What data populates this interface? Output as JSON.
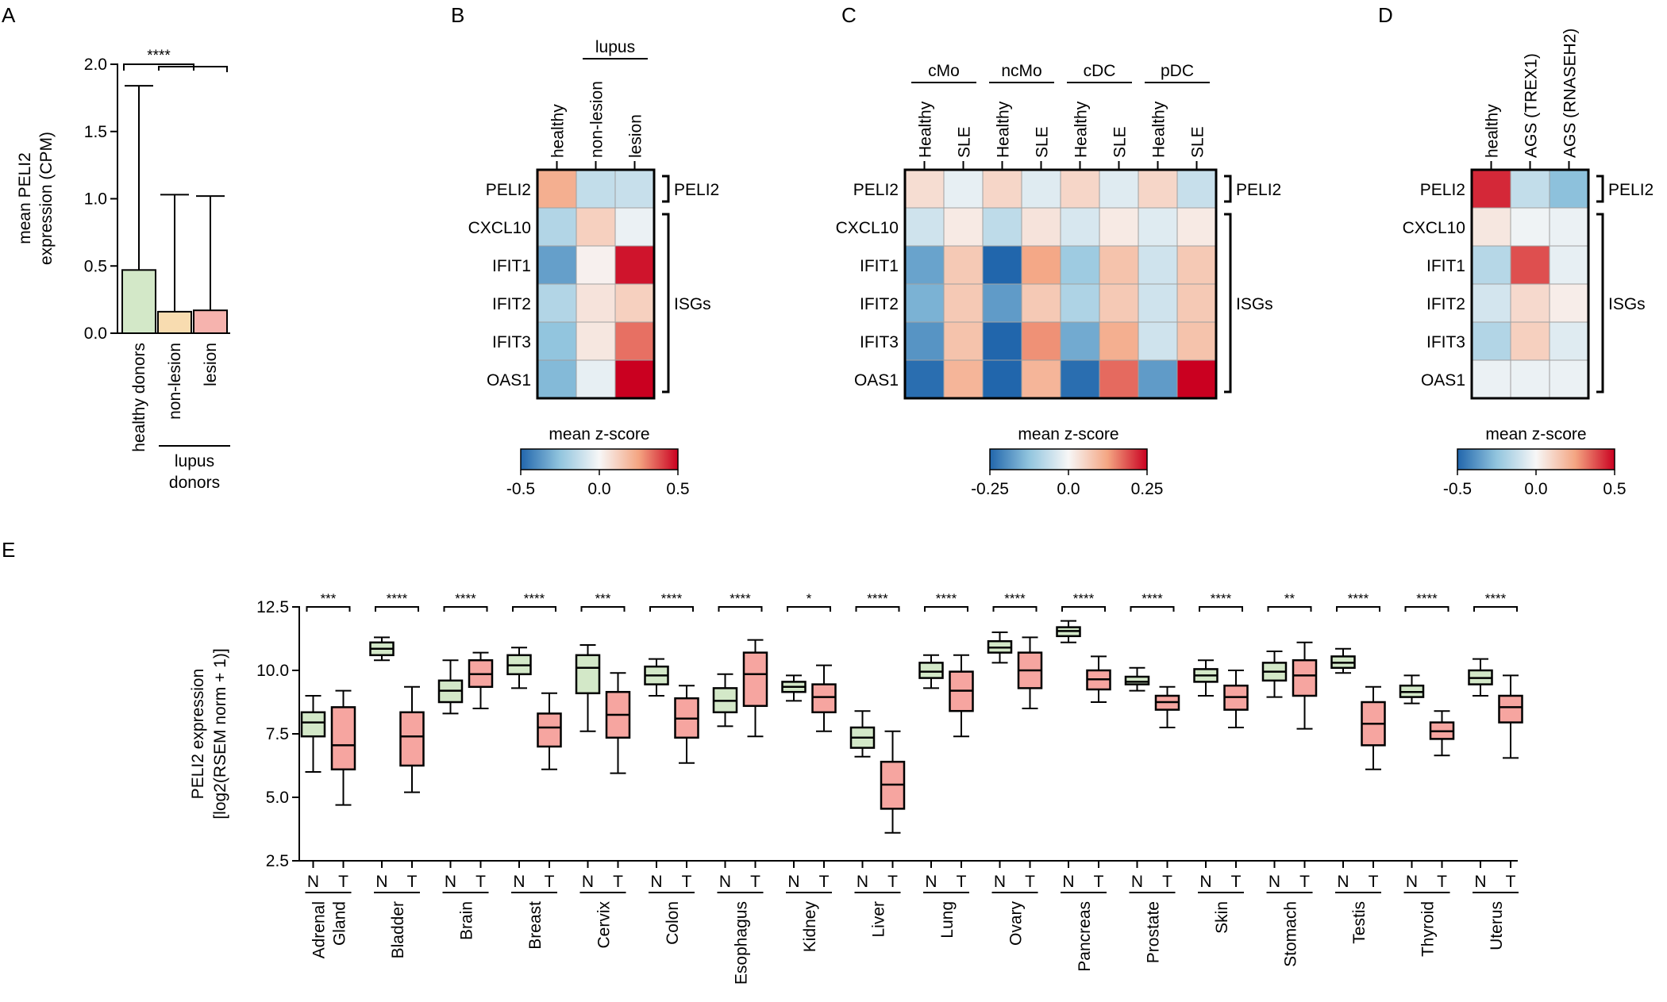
{
  "panel_labels": [
    "A",
    "B",
    "C",
    "D",
    "E"
  ],
  "chart_data": [
    {
      "id": "A",
      "type": "bar",
      "ylabel_lines": [
        "mean PELI2",
        "expression (CPM)"
      ],
      "ylim": [
        0,
        2.0
      ],
      "yticks": [
        "0.0",
        "0.5",
        "1.0",
        "1.5",
        "2.0"
      ],
      "categories": [
        "healthy donors",
        "non-lesion",
        "lesion"
      ],
      "values": [
        0.47,
        0.16,
        0.17
      ],
      "error_upper": [
        1.84,
        1.03,
        1.02
      ],
      "colors": [
        "#d3e8c8",
        "#f8dcb0",
        "#f6b3ae"
      ],
      "group_label_lines": [
        "lupus",
        "donors"
      ],
      "significance": "****"
    },
    {
      "id": "B",
      "type": "heatmap",
      "columns": [
        "healthy",
        "non-lesion",
        "lesion"
      ],
      "group_labels": [
        {
          "label": "lupus",
          "start": 1,
          "end": 2
        }
      ],
      "rows": [
        "PELI2",
        "CXCL10",
        "IFIT1",
        "IFIT2",
        "IFIT3",
        "OAS1"
      ],
      "values": [
        [
          0.22,
          -0.13,
          -0.12
        ],
        [
          -0.17,
          0.12,
          -0.03
        ],
        [
          -0.35,
          0.02,
          0.47
        ],
        [
          -0.17,
          0.06,
          0.12
        ],
        [
          -0.25,
          0.05,
          0.33
        ],
        [
          -0.28,
          -0.04,
          0.5
        ]
      ],
      "bracket_labels": [
        "PELI2",
        "ISGs"
      ],
      "colorbar": {
        "title": "mean z-score",
        "min": -0.5,
        "max": 0.5,
        "ticks": [
          "-0.5",
          "0.0",
          "0.5"
        ]
      }
    },
    {
      "id": "C",
      "type": "heatmap",
      "columns": [
        "Healthy",
        "SLE",
        "Healthy",
        "SLE",
        "Healthy",
        "SLE",
        "Healthy",
        "SLE"
      ],
      "group_labels": [
        {
          "label": "cMo",
          "start": 0,
          "end": 1
        },
        {
          "label": "ncMo",
          "start": 2,
          "end": 3
        },
        {
          "label": "cDC",
          "start": 4,
          "end": 5
        },
        {
          "label": "pDC",
          "start": 6,
          "end": 7
        }
      ],
      "rows": [
        "PELI2",
        "CXCL10",
        "IFIT1",
        "IFIT2",
        "IFIT3",
        "OAS1"
      ],
      "values": [
        [
          0.04,
          -0.02,
          0.05,
          -0.03,
          0.05,
          -0.03,
          0.05,
          -0.06
        ],
        [
          -0.05,
          0.02,
          -0.07,
          0.03,
          -0.04,
          0.02,
          -0.03,
          0.02
        ],
        [
          -0.17,
          0.07,
          -0.25,
          0.12,
          -0.11,
          0.08,
          -0.05,
          0.07
        ],
        [
          -0.15,
          0.07,
          -0.18,
          0.07,
          -0.09,
          0.07,
          -0.05,
          0.07
        ],
        [
          -0.19,
          0.08,
          -0.25,
          0.14,
          -0.16,
          0.11,
          -0.05,
          0.08
        ],
        [
          -0.24,
          0.1,
          -0.25,
          0.1,
          -0.24,
          0.17,
          -0.18,
          0.25
        ]
      ],
      "bracket_labels": [
        "PELI2",
        "ISGs"
      ],
      "colorbar": {
        "title": "mean z-score",
        "min": -0.25,
        "max": 0.25,
        "ticks": [
          "-0.25",
          "0.0",
          "0.25"
        ]
      }
    },
    {
      "id": "D",
      "type": "heatmap",
      "columns": [
        "healthy",
        "AGS (TREX1)",
        "AGS (RNASEH2)"
      ],
      "group_labels": [],
      "rows": [
        "PELI2",
        "CXCL10",
        "IFIT1",
        "IFIT2",
        "IFIT3",
        "OAS1"
      ],
      "values": [
        [
          0.44,
          -0.13,
          -0.26
        ],
        [
          0.05,
          -0.02,
          -0.03
        ],
        [
          -0.16,
          0.38,
          -0.04
        ],
        [
          -0.09,
          0.09,
          0.03
        ],
        [
          -0.17,
          0.12,
          -0.06
        ],
        [
          -0.03,
          -0.03,
          -0.03
        ]
      ],
      "bracket_labels": [
        "PELI2",
        "ISGs"
      ],
      "colorbar": {
        "title": "mean z-score",
        "min": -0.5,
        "max": 0.5,
        "ticks": [
          "-0.5",
          "0.0",
          "0.5"
        ]
      }
    },
    {
      "id": "E",
      "type": "box",
      "ylabel_lines": [
        "PELI2 expression",
        "[log2(RSEM norm + 1)]"
      ],
      "ylim": [
        2.5,
        12.5
      ],
      "yticks": [
        "2.5",
        "5.0",
        "7.5",
        "10.0",
        "12.5"
      ],
      "pair_labels": [
        "N",
        "T"
      ],
      "colors": {
        "N": "#d3e8c8",
        "T": "#f6a5a0"
      },
      "tissues": [
        {
          "name": "Adrenal Gland",
          "lines": [
            "Adrenal",
            "Gland"
          ],
          "sig": "***",
          "N": [
            6.0,
            7.4,
            7.95,
            8.35,
            9.0
          ],
          "T": [
            4.7,
            6.1,
            7.05,
            8.55,
            9.2
          ]
        },
        {
          "name": "Bladder",
          "lines": [
            "Bladder"
          ],
          "sig": "****",
          "N": [
            10.4,
            10.6,
            10.85,
            11.1,
            11.3
          ],
          "T": [
            5.2,
            6.25,
            7.4,
            8.35,
            9.35
          ]
        },
        {
          "name": "Brain",
          "lines": [
            "Brain"
          ],
          "sig": "****",
          "N": [
            8.3,
            8.75,
            9.2,
            9.6,
            10.4
          ],
          "T": [
            8.5,
            9.35,
            9.85,
            10.4,
            10.7
          ]
        },
        {
          "name": "Breast",
          "lines": [
            "Breast"
          ],
          "sig": "****",
          "N": [
            9.3,
            9.85,
            10.2,
            10.6,
            10.9
          ],
          "T": [
            6.1,
            7.0,
            7.75,
            8.3,
            9.1
          ]
        },
        {
          "name": "Cervix",
          "lines": [
            "Cervix"
          ],
          "sig": "***",
          "N": [
            7.6,
            9.1,
            10.1,
            10.6,
            11.0
          ],
          "T": [
            5.95,
            7.35,
            8.25,
            9.15,
            9.9
          ]
        },
        {
          "name": "Colon",
          "lines": [
            "Colon"
          ],
          "sig": "****",
          "N": [
            9.0,
            9.45,
            9.8,
            10.15,
            10.45
          ],
          "T": [
            6.35,
            7.35,
            8.1,
            8.9,
            9.4
          ]
        },
        {
          "name": "Esophagus",
          "lines": [
            "Esophagus"
          ],
          "sig": "****",
          "N": [
            7.8,
            8.35,
            8.8,
            9.3,
            9.85
          ],
          "T": [
            7.4,
            8.6,
            9.85,
            10.7,
            11.2
          ]
        },
        {
          "name": "Kidney",
          "lines": [
            "Kidney"
          ],
          "sig": "*",
          "N": [
            8.8,
            9.15,
            9.35,
            9.55,
            9.8
          ],
          "T": [
            7.6,
            8.35,
            8.95,
            9.45,
            10.2
          ]
        },
        {
          "name": "Liver",
          "lines": [
            "Liver"
          ],
          "sig": "****",
          "N": [
            6.6,
            6.95,
            7.35,
            7.75,
            8.4
          ],
          "T": [
            3.6,
            4.55,
            5.5,
            6.4,
            7.6
          ]
        },
        {
          "name": "Lung",
          "lines": [
            "Lung"
          ],
          "sig": "****",
          "N": [
            9.3,
            9.7,
            9.95,
            10.3,
            10.6
          ],
          "T": [
            7.4,
            8.4,
            9.2,
            9.95,
            10.6
          ]
        },
        {
          "name": "Ovary",
          "lines": [
            "Ovary"
          ],
          "sig": "****",
          "N": [
            10.3,
            10.7,
            10.9,
            11.15,
            11.5
          ],
          "T": [
            8.5,
            9.3,
            10.0,
            10.7,
            11.3
          ]
        },
        {
          "name": "Pancreas",
          "lines": [
            "Pancreas"
          ],
          "sig": "****",
          "N": [
            11.1,
            11.35,
            11.55,
            11.7,
            11.95
          ],
          "T": [
            8.75,
            9.25,
            9.65,
            10.0,
            10.55
          ]
        },
        {
          "name": "Prostate",
          "lines": [
            "Prostate"
          ],
          "sig": "****",
          "N": [
            9.2,
            9.45,
            9.55,
            9.75,
            10.1
          ],
          "T": [
            7.75,
            8.45,
            8.75,
            9.0,
            9.35
          ]
        },
        {
          "name": "Skin",
          "lines": [
            "Skin"
          ],
          "sig": "****",
          "N": [
            9.0,
            9.55,
            9.8,
            10.05,
            10.4
          ],
          "T": [
            7.75,
            8.45,
            8.95,
            9.4,
            10.0
          ]
        },
        {
          "name": "Stomach",
          "lines": [
            "Stomach"
          ],
          "sig": "**",
          "N": [
            8.95,
            9.6,
            9.95,
            10.3,
            10.75
          ],
          "T": [
            7.7,
            9.0,
            9.8,
            10.4,
            11.1
          ]
        },
        {
          "name": "Testis",
          "lines": [
            "Testis"
          ],
          "sig": "****",
          "N": [
            9.9,
            10.1,
            10.3,
            10.55,
            10.85
          ],
          "T": [
            6.1,
            7.05,
            7.9,
            8.75,
            9.35
          ]
        },
        {
          "name": "Thyroid",
          "lines": [
            "Thyroid"
          ],
          "sig": "****",
          "N": [
            8.7,
            8.95,
            9.15,
            9.4,
            9.8
          ],
          "T": [
            6.65,
            7.3,
            7.6,
            7.95,
            8.4
          ]
        },
        {
          "name": "Uterus",
          "lines": [
            "Uterus"
          ],
          "sig": "****",
          "N": [
            9.0,
            9.45,
            9.7,
            10.0,
            10.45
          ],
          "T": [
            6.55,
            7.95,
            8.55,
            9.0,
            9.8
          ]
        }
      ]
    }
  ]
}
